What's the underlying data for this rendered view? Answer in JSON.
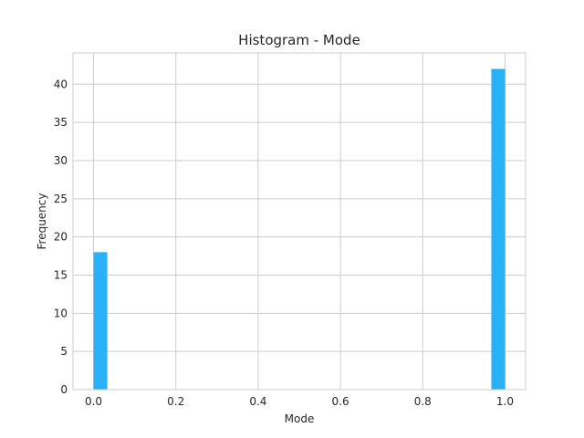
{
  "chart_data": {
    "type": "bar",
    "title": "Histogram - Mode",
    "xlabel": "Mode",
    "ylabel": "Frequency",
    "xlim": [
      -0.05,
      1.05
    ],
    "ylim": [
      0,
      44.1
    ],
    "xticks": [
      0.0,
      0.2,
      0.4,
      0.6,
      0.8,
      1.0
    ],
    "xtick_labels": [
      "0.0",
      "0.2",
      "0.4",
      "0.6",
      "0.8",
      "1.0"
    ],
    "yticks": [
      0,
      5,
      10,
      15,
      20,
      25,
      30,
      35,
      40
    ],
    "ytick_labels": [
      "0",
      "5",
      "10",
      "15",
      "20",
      "25",
      "30",
      "35",
      "40"
    ],
    "grid": true,
    "bar_color": "#29b0f7",
    "bins": [
      {
        "x0": 0.0,
        "x1": 0.0333,
        "count": 18
      },
      {
        "x0": 0.9667,
        "x1": 1.0,
        "count": 42
      }
    ]
  }
}
